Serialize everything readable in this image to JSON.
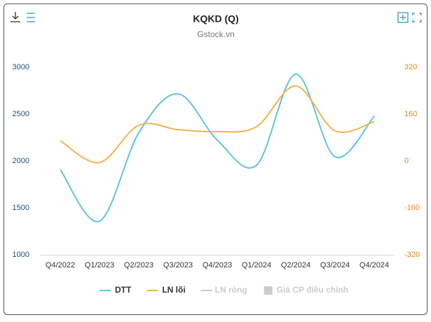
{
  "chart_data": {
    "type": "line",
    "title": "KQKD (Q)",
    "subtitle": "Gstock.vn",
    "categories": [
      "Q4/2022",
      "Q1/2023",
      "Q2/2023",
      "Q3/2023",
      "Q4/2023",
      "Q1/2024",
      "Q2/2024",
      "Q3/2024",
      "Q4/2024"
    ],
    "series": [
      {
        "name": "DTT",
        "color": "#62c3de",
        "values": [
          1910,
          1358,
          2300,
          2716,
          2224,
          1955,
          2925,
          2045,
          2478
        ]
      },
      {
        "name": "LN lõi",
        "color": "#f2b44e",
        "axis": "y2",
        "values": [
          69,
          -5,
          122,
          107,
          100,
          117,
          256,
          103,
          134
        ]
      }
    ],
    "inactive_legend": [
      "LN ròng",
      "Giá CP điều chỉnh"
    ],
    "ylim": [
      1000,
      3000
    ],
    "yticks": [
      1000,
      1500,
      2000,
      2500,
      3000
    ],
    "y2lim": [
      -320,
      320
    ],
    "y2ticks": [
      -320,
      -160,
      0,
      160,
      320
    ],
    "grid": false
  }
}
